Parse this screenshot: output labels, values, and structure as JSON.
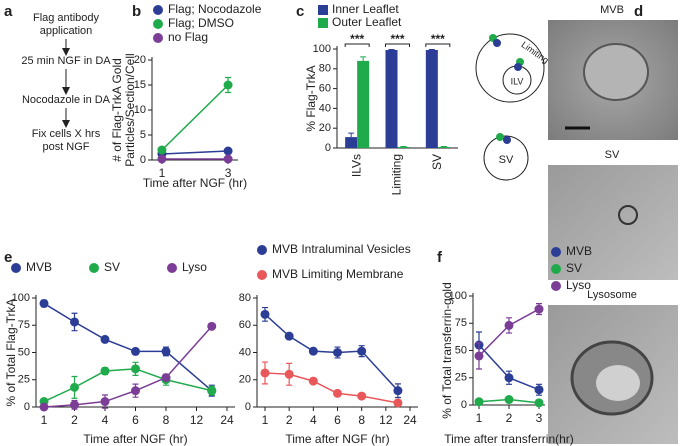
{
  "panels": {
    "letters": [
      "a",
      "b",
      "c",
      "d",
      "e",
      "f"
    ]
  },
  "flowchart": {
    "steps": [
      [
        "Flag antibody",
        "application"
      ],
      [
        "25 min NGF in DA"
      ],
      [
        "Nocodazole in DA"
      ],
      [
        "Fix cells X hrs",
        "post NGF"
      ]
    ]
  },
  "diagram": {
    "labels": [
      "Limiting",
      "ILV",
      "SV"
    ]
  },
  "micrographs": {
    "labels": [
      "MVB",
      "SV",
      "Lysosome"
    ]
  },
  "chart_data": [
    {
      "type": "line",
      "ylabel": [
        "# of Flag-TrkA Gold",
        "Particles/Section/Cell"
      ],
      "xlabel": "Time after NGF (hr)",
      "x": [
        1,
        3
      ],
      "xlim": [
        0.7,
        3.3
      ],
      "xticks": [
        1,
        3
      ],
      "ylim": [
        0,
        20
      ],
      "yticks": [
        0,
        5,
        10,
        15,
        20
      ],
      "series": [
        {
          "name": "Flag; Nocodazole",
          "color": "#2b3d95",
          "values": [
            1.2,
            1.8
          ],
          "errors": [
            0.3,
            0.3
          ]
        },
        {
          "name": "Flag; DMSO",
          "color": "#1faa4b",
          "values": [
            2,
            15
          ],
          "errors": [
            0.5,
            1.5
          ]
        },
        {
          "name": "no Flag",
          "color": "#7b3d96",
          "values": [
            0.2,
            0.2
          ],
          "errors": [
            0.1,
            0.1
          ]
        }
      ]
    },
    {
      "type": "bar",
      "ylabel": "% Flag-TrkA",
      "categories": [
        "ILVs",
        "Limiting",
        "SV"
      ],
      "ylim": [
        0,
        100
      ],
      "yticks": [
        0,
        20,
        40,
        60,
        80,
        100
      ],
      "annotations": [
        "***",
        "***",
        "***"
      ],
      "series": [
        {
          "name": "Inner Leaflet",
          "color": "#2b3d95",
          "values": [
            11,
            99,
            99
          ],
          "errors": [
            4,
            0.5,
            0.5
          ]
        },
        {
          "name": "Outer Leaflet",
          "color": "#1faa4b",
          "values": [
            88,
            1,
            1
          ],
          "errors": [
            4,
            0.5,
            0.5
          ]
        }
      ]
    },
    {
      "type": "line",
      "ylabel": "% of Total Flag-TrkA",
      "xlabel": "Time after NGF (hr)",
      "xscale": "ordinal",
      "x": [
        1,
        2,
        4,
        6,
        8,
        18
      ],
      "xticks": [
        1,
        2,
        4,
        6,
        8,
        12,
        24
      ],
      "ylim": [
        0,
        100
      ],
      "yticks": [
        0,
        25,
        50,
        75,
        100
      ],
      "series": [
        {
          "name": "MVB",
          "color": "#2b3d95",
          "values": [
            95,
            78,
            62,
            51,
            51,
            15
          ],
          "errors": [
            3,
            8,
            2,
            2,
            4,
            5
          ]
        },
        {
          "name": "SV",
          "color": "#1faa4b",
          "values": [
            5,
            18,
            33,
            35,
            25,
            15
          ],
          "errors": [
            2,
            10,
            3,
            6,
            5,
            4
          ]
        },
        {
          "name": "Lyso",
          "color": "#7b3d96",
          "values": [
            0,
            2,
            5,
            15,
            27,
            74
          ],
          "errors": [
            2,
            4,
            6,
            6,
            3,
            2
          ]
        }
      ]
    },
    {
      "type": "line",
      "xlabel": "Time after NGF (hr)",
      "xscale": "ordinal",
      "x": [
        1,
        2,
        4,
        6,
        8,
        18
      ],
      "xticks": [
        1,
        2,
        4,
        6,
        8,
        12,
        24
      ],
      "ylim": [
        0,
        80
      ],
      "yticks": [
        0,
        20,
        40,
        60,
        80
      ],
      "series": [
        {
          "name": "MVB Intraluminal Vesicles",
          "color": "#2b3d95",
          "values": [
            68,
            52,
            41,
            40,
            41,
            12
          ],
          "errors": [
            5,
            2,
            2,
            4,
            4,
            5
          ]
        },
        {
          "name": "MVB Limiting Membrane",
          "color": "#e8575a",
          "values": [
            25,
            24,
            19,
            10,
            8,
            3
          ],
          "errors": [
            8,
            8,
            2,
            2,
            2,
            2
          ]
        }
      ]
    },
    {
      "type": "line",
      "ylabel": "% of Total transferrin-gold",
      "xlabel": "Time after transferrin(hr)",
      "x": [
        1,
        2,
        3
      ],
      "xlim": [
        0.8,
        3.2
      ],
      "xticks": [
        1,
        2,
        3
      ],
      "ylim": [
        0,
        100
      ],
      "yticks": [
        0,
        25,
        50,
        75,
        100
      ],
      "series": [
        {
          "name": "MVB",
          "color": "#2b3d95",
          "values": [
            55,
            25,
            14
          ],
          "errors": [
            12,
            6,
            5
          ]
        },
        {
          "name": "SV",
          "color": "#1faa4b",
          "values": [
            3,
            5,
            2
          ],
          "errors": [
            1,
            1,
            1
          ]
        },
        {
          "name": "Lyso",
          "color": "#7b3d96",
          "values": [
            45,
            73,
            88
          ],
          "errors": [
            12,
            7,
            5
          ]
        }
      ]
    }
  ]
}
